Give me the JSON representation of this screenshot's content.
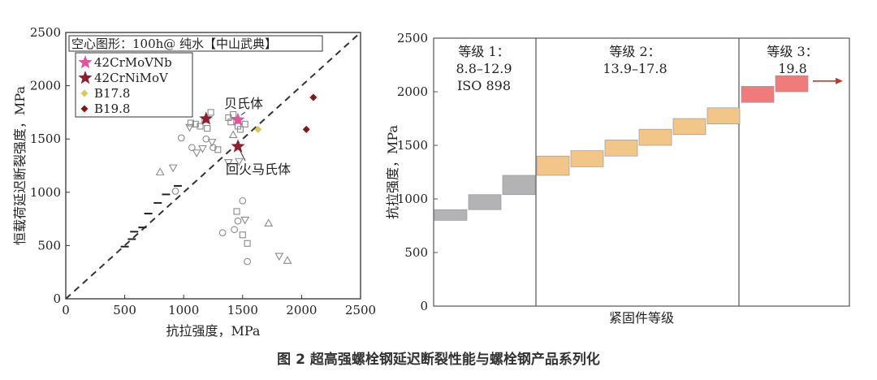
{
  "caption": "图 2 超高强螺栓钢延迟断裂性能与螺栓钢产品系列化",
  "chart_data": [
    {
      "type": "scatter",
      "xlabel": "抗拉强度，MPa",
      "ylabel": "恒载荷延迟断裂强度，MPa",
      "xlim": [
        0,
        2500
      ],
      "ylim": [
        0,
        2500
      ],
      "xticks": [
        0,
        500,
        1000,
        1500,
        2000,
        2500
      ],
      "yticks": [
        0,
        500,
        1000,
        1500,
        2000,
        2500
      ],
      "reference_line": {
        "style": "dashed",
        "from": [
          0,
          0
        ],
        "to": [
          2500,
          2500
        ]
      },
      "legend_title": "空心图形：100h@ 纯水【中山武典】",
      "legend": [
        {
          "name": "42CrMoVNb",
          "marker": "star",
          "color": "#e0559b"
        },
        {
          "name": "42CrNiMoV",
          "marker": "star",
          "color": "#8e1f33"
        },
        {
          "name": "B17.8",
          "marker": "diamond",
          "color": "#d9c95a"
        },
        {
          "name": "B19.8",
          "marker": "diamond",
          "color": "#7a1a1a"
        }
      ],
      "series": [
        {
          "name": "42CrMoVNb",
          "marker": "star",
          "color": "#e0559b",
          "points": [
            [
              1460,
              1680
            ]
          ]
        },
        {
          "name": "42CrNiMoV",
          "marker": "star",
          "color": "#8e1f33",
          "points": [
            [
              1190,
              1690
            ],
            [
              1460,
              1430
            ]
          ]
        },
        {
          "name": "B17.8",
          "marker": "diamond",
          "color": "#d9c95a",
          "points": [
            [
              1630,
              1590
            ]
          ]
        },
        {
          "name": "B19.8",
          "marker": "diamond",
          "color": "#7a1a1a",
          "points": [
            [
              2100,
              1890
            ],
            [
              2040,
              1590
            ]
          ]
        }
      ],
      "hollow_points": {
        "square": [
          [
            1060,
            1650
          ],
          [
            1100,
            1640
          ],
          [
            1140,
            1620
          ],
          [
            1180,
            1680
          ],
          [
            1230,
            1750
          ],
          [
            1200,
            1600
          ],
          [
            1290,
            1400
          ],
          [
            1380,
            1700
          ],
          [
            1420,
            1730
          ],
          [
            1480,
            1590
          ],
          [
            1520,
            1640
          ],
          [
            1460,
            1620
          ],
          [
            1400,
            1660
          ],
          [
            1450,
            820
          ],
          [
            1500,
            600
          ],
          [
            1540,
            520
          ]
        ],
        "circle": [
          [
            930,
            1010
          ],
          [
            980,
            1510
          ],
          [
            1070,
            1420
          ],
          [
            1190,
            1500
          ],
          [
            1250,
            1420
          ],
          [
            1330,
            620
          ],
          [
            1430,
            650
          ],
          [
            1460,
            730
          ],
          [
            1500,
            920
          ],
          [
            1540,
            350
          ]
        ],
        "triangle_up": [
          [
            800,
            1190
          ],
          [
            1420,
            1540
          ],
          [
            1720,
            710
          ],
          [
            1880,
            360
          ]
        ],
        "triangle_down": [
          [
            910,
            1230
          ],
          [
            1110,
            1370
          ],
          [
            1050,
            1610
          ],
          [
            1160,
            1410
          ],
          [
            1240,
            1470
          ],
          [
            1380,
            1280
          ],
          [
            1470,
            1290
          ],
          [
            1520,
            740
          ],
          [
            1810,
            400
          ]
        ],
        "dash": [
          [
            500,
            490
          ],
          [
            560,
            560
          ],
          [
            580,
            630
          ],
          [
            650,
            670
          ],
          [
            700,
            800
          ],
          [
            780,
            900
          ],
          [
            850,
            980
          ],
          [
            950,
            1060
          ]
        ]
      },
      "annotations": [
        {
          "text": "贝氏体",
          "target": [
            1460,
            1680
          ]
        },
        {
          "text": "回火马氏体",
          "target": [
            1460,
            1430
          ]
        }
      ]
    },
    {
      "type": "bar",
      "style": "floating",
      "xlabel": "紧固件等级",
      "ylabel": "抗拉强度，MPa",
      "ylim": [
        0,
        2500
      ],
      "yticks": [
        0,
        500,
        1000,
        1500,
        2000,
        2500
      ],
      "regions": [
        {
          "label_lines": [
            "等级 1：",
            "8.8–12.9",
            "ISO 898"
          ]
        },
        {
          "label_lines": [
            "等级 2：",
            "13.9–17.8"
          ]
        },
        {
          "label_lines": [
            "等级 3：",
            "19.8"
          ]
        }
      ],
      "bars": [
        {
          "group": 1,
          "low": 800,
          "high": 900,
          "color": "#b3b3b5"
        },
        {
          "group": 1,
          "low": 900,
          "high": 1040,
          "color": "#b3b3b5"
        },
        {
          "group": 1,
          "low": 1040,
          "high": 1220,
          "color": "#b3b3b5"
        },
        {
          "group": 2,
          "low": 1220,
          "high": 1400,
          "color": "#f2c688"
        },
        {
          "group": 2,
          "low": 1300,
          "high": 1450,
          "color": "#f2c688"
        },
        {
          "group": 2,
          "low": 1400,
          "high": 1550,
          "color": "#f2c688"
        },
        {
          "group": 2,
          "low": 1500,
          "high": 1650,
          "color": "#f2c688"
        },
        {
          "group": 2,
          "low": 1600,
          "high": 1750,
          "color": "#f2c688"
        },
        {
          "group": 2,
          "low": 1700,
          "high": 1850,
          "color": "#f2c688"
        },
        {
          "group": 3,
          "low": 1900,
          "high": 2050,
          "color": "#f07b7b"
        },
        {
          "group": 3,
          "low": 2000,
          "high": 2150,
          "color": "#f07b7b"
        }
      ],
      "arrow": {
        "y": 2100,
        "color": "#c0392b"
      }
    }
  ]
}
